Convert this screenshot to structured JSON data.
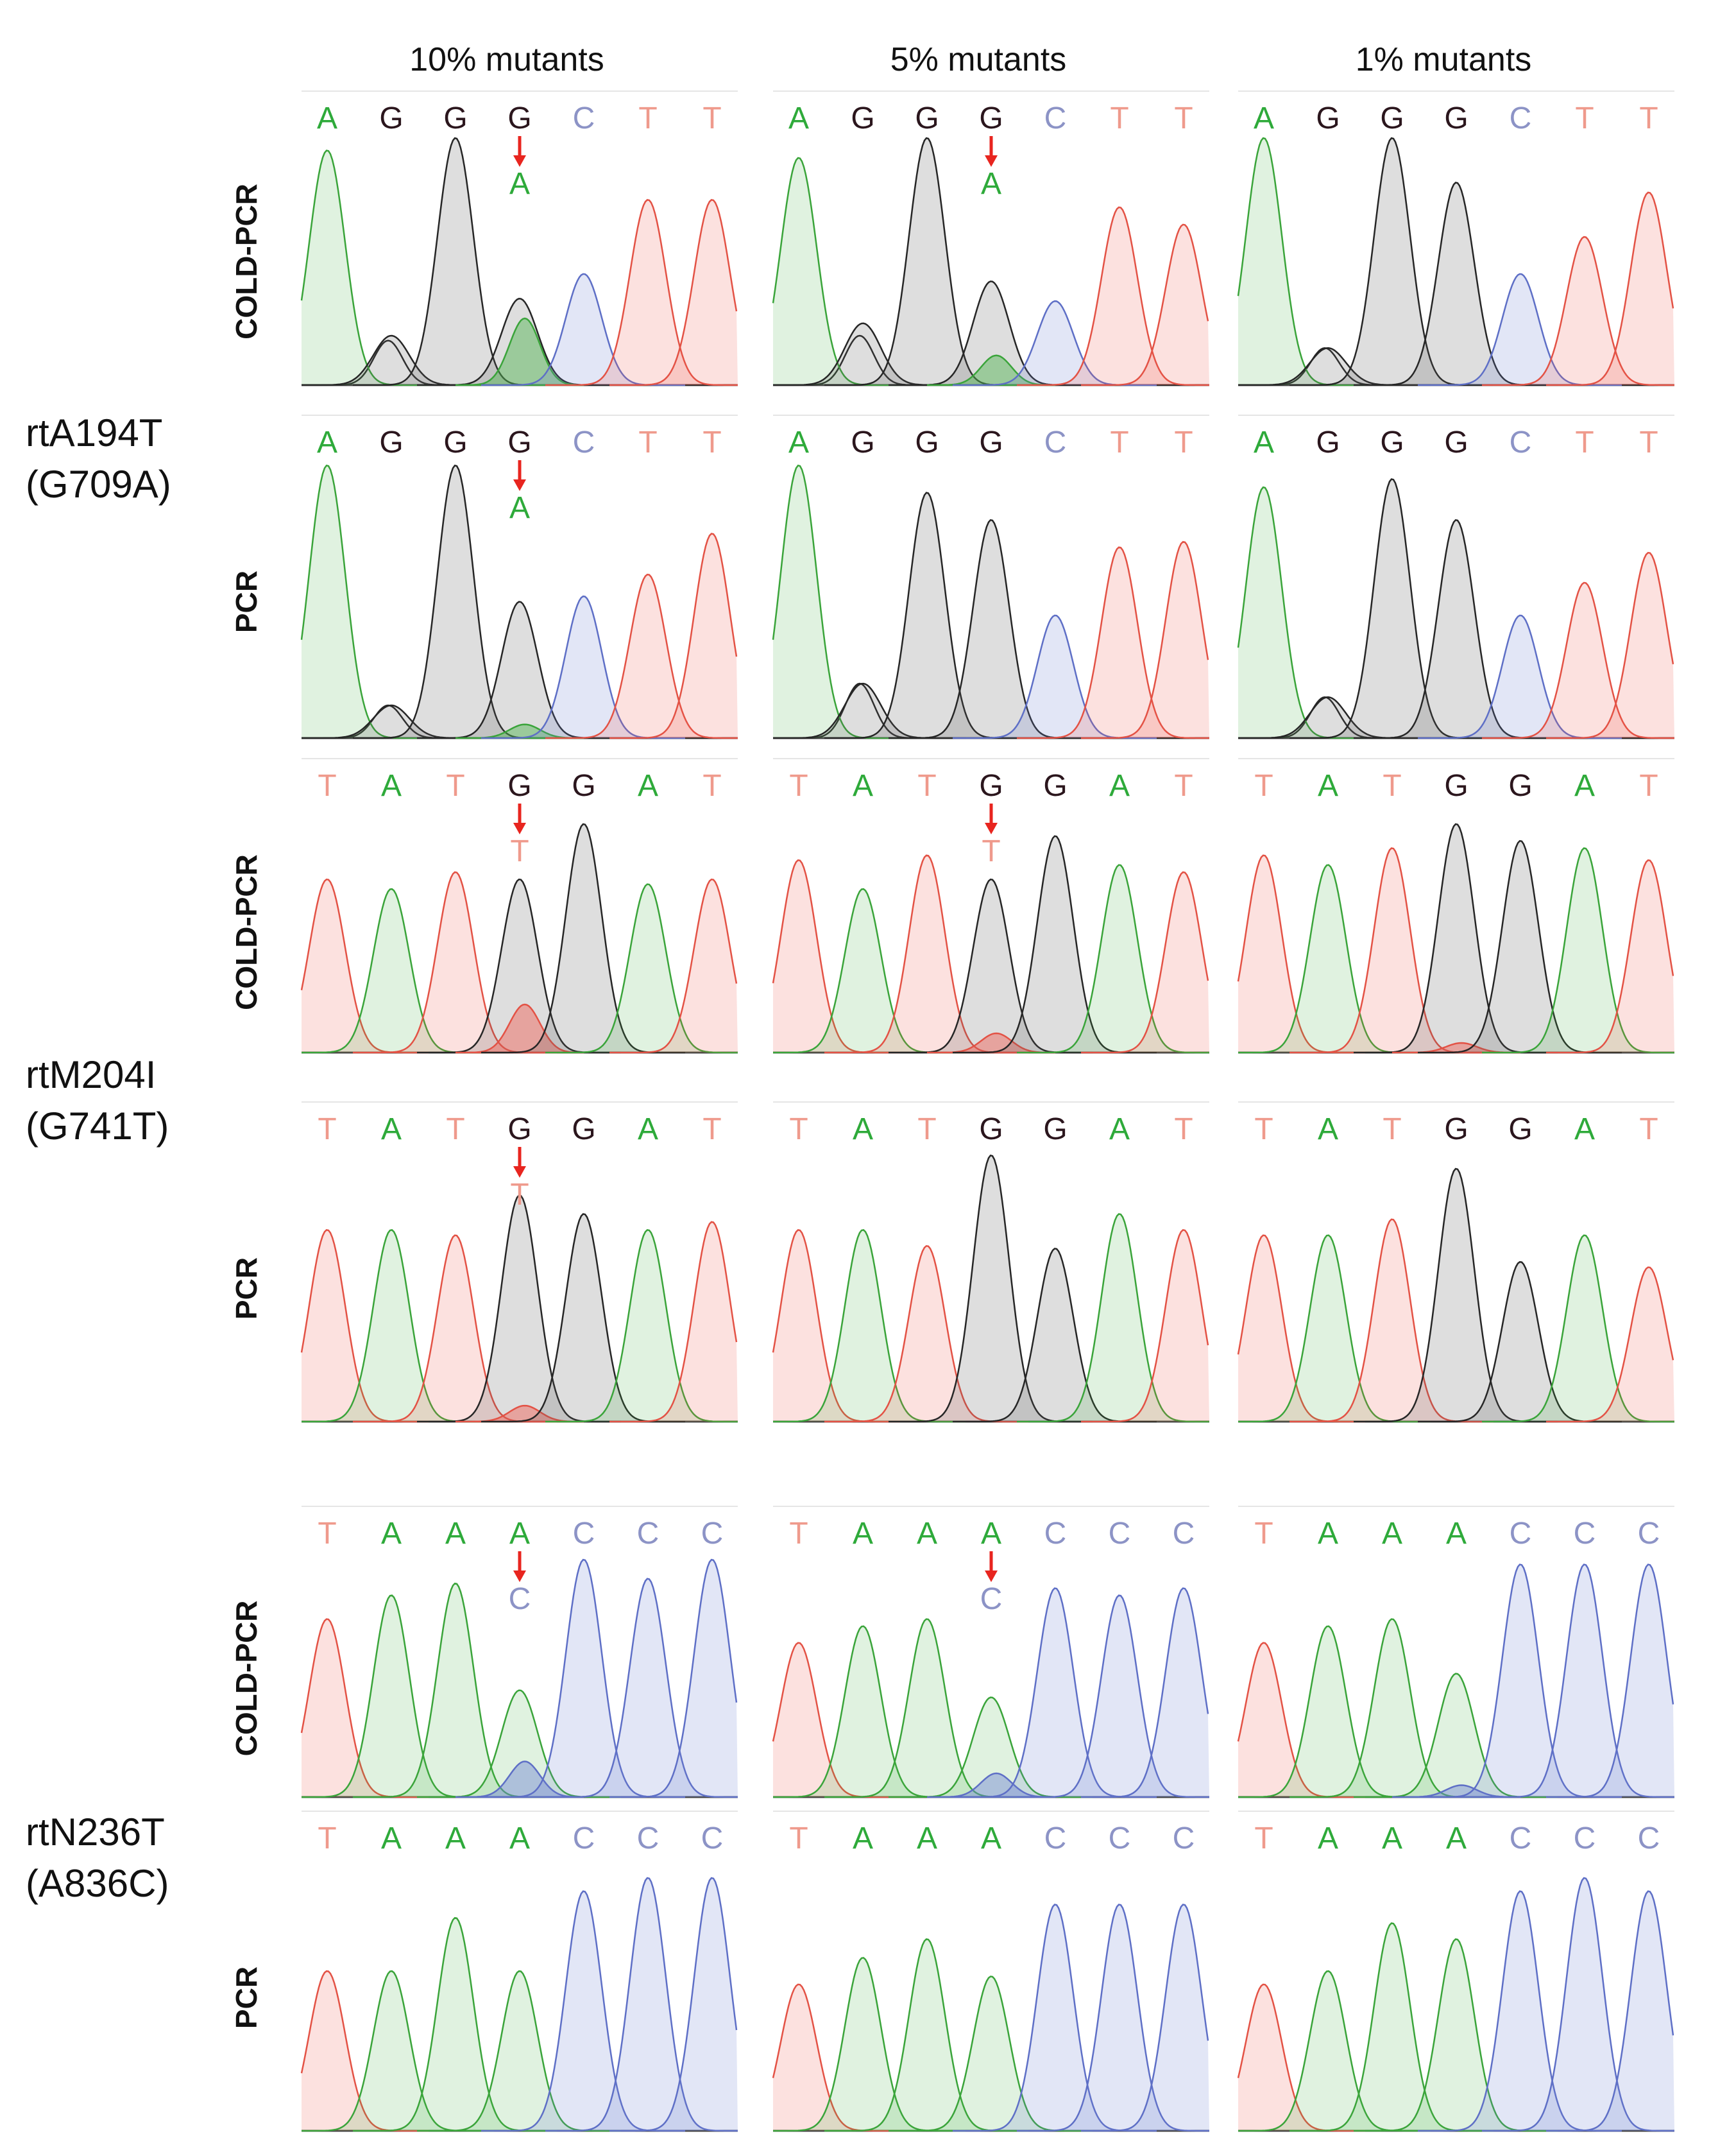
{
  "colors": {
    "A": "#2eaa3a",
    "G": "#2b161d",
    "C": "#8c93c6",
    "T": "#ef9a8c",
    "arrow": "#e8251f",
    "fill_A": "rgba(74,178,74,0.17)",
    "stroke_A": "#3aa43a",
    "fill_G": "rgba(90,90,90,0.20)",
    "stroke_G": "#262626",
    "fill_C": "rgba(110,130,210,0.20)",
    "stroke_C": "#5e6fc6",
    "fill_T": "rgba(240,90,80,0.18)",
    "stroke_T": "#e35245"
  },
  "chart_data": {
    "type": "chromatogram",
    "title": "",
    "column_headers": [
      "10% mutants",
      "5% mutants",
      "1% mutants"
    ],
    "row_labels": [
      "COLD-PCR",
      "PCR"
    ],
    "mutations": [
      {
        "name": "rtA194T",
        "change": "(G709A)",
        "bases": [
          "A",
          "G",
          "G",
          "G",
          "C",
          "T",
          "T"
        ],
        "mutant_index": 3,
        "mutant_base": "A",
        "arrows": {
          "COLD-PCR": [
            true,
            true,
            false
          ],
          "PCR": [
            true,
            false,
            false
          ]
        },
        "panels": {
          "COLD-PCR": [
            {
              "peaks": [
                0.95,
                0.2,
                1.0,
                0.35,
                0.45,
                0.75,
                0.75
              ],
              "minor": 0.27,
              "mid_bump": 0.18
            },
            {
              "peaks": [
                0.92,
                0.25,
                1.0,
                0.42,
                0.34,
                0.72,
                0.65
              ],
              "minor": 0.12,
              "mid_bump": 0.2
            },
            {
              "peaks": [
                1.0,
                0.15,
                1.0,
                0.82,
                0.45,
                0.6,
                0.78
              ],
              "minor": 0.0,
              "mid_bump": 0.15
            }
          ],
          "PCR": [
            {
              "peaks": [
                1.0,
                0.12,
                1.0,
                0.5,
                0.52,
                0.6,
                0.75
              ],
              "minor": 0.05,
              "mid_bump": 0.12
            },
            {
              "peaks": [
                1.0,
                0.2,
                0.9,
                0.8,
                0.45,
                0.7,
                0.72
              ],
              "minor": 0.0,
              "mid_bump": 0.2
            },
            {
              "peaks": [
                0.92,
                0.15,
                0.95,
                0.8,
                0.45,
                0.57,
                0.68
              ],
              "minor": 0.0,
              "mid_bump": 0.15
            }
          ]
        }
      },
      {
        "name": "rtM204I",
        "change": "(G741T)",
        "bases": [
          "T",
          "A",
          "T",
          "G",
          "G",
          "A",
          "T"
        ],
        "mutant_index": 3,
        "mutant_base": "T",
        "arrows": {
          "COLD-PCR": [
            true,
            true,
            false
          ],
          "PCR": [
            true,
            false,
            false
          ]
        },
        "panels": {
          "COLD-PCR": [
            {
              "peaks": [
                0.72,
                0.68,
                0.75,
                0.72,
                0.95,
                0.7,
                0.72
              ],
              "minor": 0.2,
              "mid_bump": 0
            },
            {
              "peaks": [
                0.8,
                0.68,
                0.82,
                0.72,
                0.9,
                0.78,
                0.75
              ],
              "minor": 0.08,
              "mid_bump": 0
            },
            {
              "peaks": [
                0.82,
                0.78,
                0.85,
                0.95,
                0.88,
                0.85,
                0.8
              ],
              "minor": 0.04,
              "mid_bump": 0
            }
          ],
          "PCR": [
            {
              "peaks": [
                0.72,
                0.72,
                0.7,
                0.85,
                0.78,
                0.72,
                0.75
              ],
              "minor": 0.06,
              "mid_bump": 0
            },
            {
              "peaks": [
                0.72,
                0.72,
                0.66,
                1.0,
                0.65,
                0.78,
                0.72
              ],
              "minor": 0.0,
              "mid_bump": 0
            },
            {
              "peaks": [
                0.7,
                0.7,
                0.76,
                0.95,
                0.6,
                0.7,
                0.58
              ],
              "minor": 0.0,
              "mid_bump": 0
            }
          ]
        }
      },
      {
        "name": "rtN236T",
        "change": "(A836C)",
        "bases": [
          "T",
          "A",
          "A",
          "A",
          "C",
          "C",
          "C"
        ],
        "mutant_index": 3,
        "mutant_base": "C",
        "arrows": {
          "COLD-PCR": [
            true,
            true,
            false
          ],
          "PCR": [
            false,
            false,
            false
          ]
        },
        "panels": {
          "COLD-PCR": [
            {
              "peaks": [
                0.75,
                0.85,
                0.9,
                0.45,
                1.0,
                0.92,
                1.0
              ],
              "minor": 0.15,
              "mid_bump": 0
            },
            {
              "peaks": [
                0.65,
                0.72,
                0.75,
                0.42,
                0.88,
                0.85,
                0.88
              ],
              "minor": 0.1,
              "mid_bump": 0
            },
            {
              "peaks": [
                0.65,
                0.72,
                0.75,
                0.52,
                0.98,
                0.98,
                0.98
              ],
              "minor": 0.05,
              "mid_bump": 0
            }
          ],
          "PCR": [
            {
              "peaks": [
                0.6,
                0.6,
                0.8,
                0.6,
                0.9,
                0.95,
                0.95
              ],
              "minor": 0.0,
              "mid_bump": 0
            },
            {
              "peaks": [
                0.55,
                0.65,
                0.72,
                0.58,
                0.85,
                0.85,
                0.85
              ],
              "minor": 0.0,
              "mid_bump": 0
            },
            {
              "peaks": [
                0.55,
                0.6,
                0.78,
                0.72,
                0.9,
                0.95,
                0.9
              ],
              "minor": 0.0,
              "mid_bump": 0
            }
          ]
        }
      }
    ]
  }
}
